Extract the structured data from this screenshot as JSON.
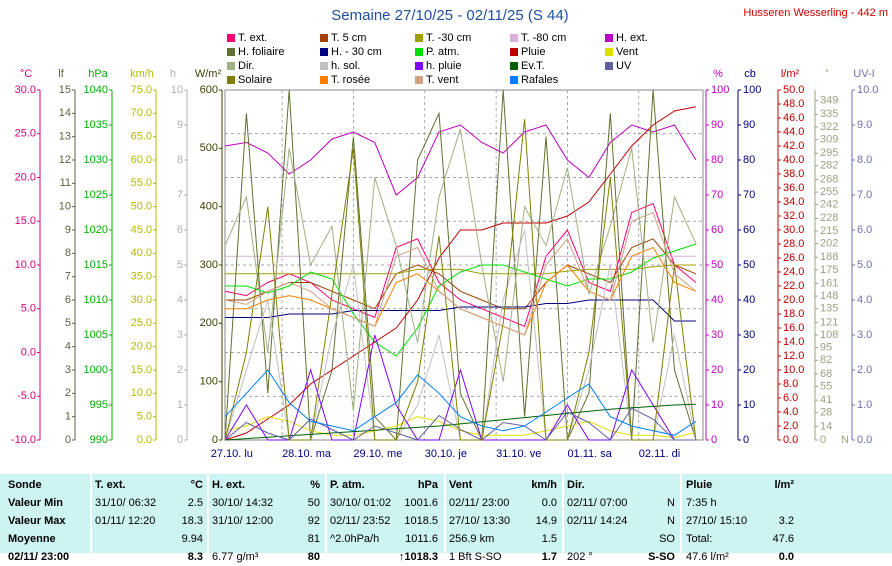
{
  "chart_data": {
    "type": "line",
    "title": "Semaine 27/10/25 - 02/11/25 (S 44)",
    "station": "Husseren Wesserling - 442 m",
    "x": [
      0.2,
      0.5,
      0.8,
      1.1,
      1.4,
      1.7,
      2.0,
      2.3,
      2.6,
      2.9,
      3.2,
      3.5,
      3.8,
      4.1,
      4.4,
      4.7,
      5.0,
      5.3,
      5.6,
      5.9,
      6.2,
      6.5,
      6.8
    ],
    "xlim": [
      0.2,
      6.9
    ],
    "xticks": [
      {
        "value": 0,
        "label": "27.10. lu"
      },
      {
        "value": 1,
        "label": "28.10. ma"
      },
      {
        "value": 2,
        "label": "29.10. me"
      },
      {
        "value": 3,
        "label": "30.10. je"
      },
      {
        "value": 4,
        "label": "31.10. ve"
      },
      {
        "value": 5,
        "label": "01.11. sa"
      },
      {
        "value": 6,
        "label": "02.11. di"
      }
    ],
    "grid_axis": "temp",
    "axes": {
      "temp": {
        "label": "°C",
        "color": "#e0007f",
        "lim": [
          -10,
          30
        ],
        "ticks": [
          {
            "value": -10,
            "label": "-10.0"
          },
          {
            "value": -5,
            "label": "-5.0"
          },
          {
            "value": 0,
            "label": "0.0"
          },
          {
            "value": 5,
            "label": "5.0"
          },
          {
            "value": 10,
            "label": "10.0"
          },
          {
            "value": 15,
            "label": "15.0"
          },
          {
            "value": 20,
            "label": "20.0"
          },
          {
            "value": 25,
            "label": "25.0"
          },
          {
            "value": 30,
            "label": "30.0"
          }
        ]
      },
      "lf": {
        "label": "lf",
        "color": "#606040",
        "lim": [
          0,
          15
        ],
        "ticks": [
          0,
          1,
          2,
          3,
          4,
          5,
          6,
          7,
          8,
          9,
          10,
          11,
          12,
          13,
          14,
          15
        ]
      },
      "hpa": {
        "label": "hPa",
        "color": "#00b000",
        "lim": [
          990,
          1040
        ],
        "ticks": [
          990,
          995,
          1000,
          1005,
          1010,
          1015,
          1020,
          1025,
          1030,
          1035,
          1040
        ]
      },
      "kmh": {
        "label": "km/h",
        "color": "#b8b800",
        "lim": [
          0,
          75
        ],
        "ticks": [
          {
            "value": 0,
            "label": "0.0"
          },
          {
            "value": 5,
            "label": "5.0"
          },
          {
            "value": 10,
            "label": "10.0"
          },
          {
            "value": 15,
            "label": "15.0"
          },
          {
            "value": 20,
            "label": "20.0"
          },
          {
            "value": 25,
            "label": "25.0"
          },
          {
            "value": 30,
            "label": "30.0"
          },
          {
            "value": 35,
            "label": "35.0"
          },
          {
            "value": 40,
            "label": "40.0"
          },
          {
            "value": 45,
            "label": "45.0"
          },
          {
            "value": 50,
            "label": "50.0"
          },
          {
            "value": 55,
            "label": "55.0"
          },
          {
            "value": 60,
            "label": "60.0"
          },
          {
            "value": 65,
            "label": "65.0"
          },
          {
            "value": 70,
            "label": "70.0"
          },
          {
            "value": 75,
            "label": "75.0"
          }
        ]
      },
      "h": {
        "label": "h",
        "color": "#b0b0b0",
        "lim": [
          0,
          10
        ],
        "ticks": [
          0,
          1,
          2,
          3,
          4,
          5,
          6,
          7,
          8,
          9,
          10
        ]
      },
      "wm2": {
        "label": "W/m²",
        "color": "#404000",
        "lim": [
          0,
          600
        ],
        "ticks": [
          0,
          100,
          200,
          300,
          400,
          500,
          600
        ]
      },
      "pct": {
        "label": "%",
        "color": "#c000c0",
        "lim": [
          0,
          100
        ],
        "ticks": [
          0,
          10,
          20,
          30,
          40,
          50,
          60,
          70,
          80,
          90,
          100
        ]
      },
      "cb": {
        "label": "cb",
        "color": "#000080",
        "lim": [
          0,
          100
        ],
        "ticks": [
          0,
          10,
          20,
          30,
          40,
          50,
          60,
          70,
          80,
          90,
          100
        ]
      },
      "rain": {
        "label": "l/m²",
        "color": "#c00000",
        "lim": [
          0,
          50
        ],
        "ticks": [
          {
            "value": 0,
            "label": "0.0"
          },
          {
            "value": 2,
            "label": "2.0"
          },
          {
            "value": 4,
            "label": "4.0"
          },
          {
            "value": 6,
            "label": "6.0"
          },
          {
            "value": 8,
            "label": "8.0"
          },
          {
            "value": 10,
            "label": "10.0"
          },
          {
            "value": 12,
            "label": "12.0"
          },
          {
            "value": 14,
            "label": "14.0"
          },
          {
            "value": 16,
            "label": "16.0"
          },
          {
            "value": 18,
            "label": "18.0"
          },
          {
            "value": 20,
            "label": "20.0"
          },
          {
            "value": 22,
            "label": "22.0"
          },
          {
            "value": 24,
            "label": "24.0"
          },
          {
            "value": 26,
            "label": "26.0"
          },
          {
            "value": 28,
            "label": "28.0"
          },
          {
            "value": 30,
            "label": "30.0"
          },
          {
            "value": 32,
            "label": "32.0"
          },
          {
            "value": 34,
            "label": "34.0"
          },
          {
            "value": 36,
            "label": "36.0"
          },
          {
            "value": 38,
            "label": "38.0"
          },
          {
            "value": 40,
            "label": "40.0"
          },
          {
            "value": 42,
            "label": "42.0"
          },
          {
            "value": 44,
            "label": "44.0"
          },
          {
            "value": 46,
            "label": "46.0"
          },
          {
            "value": 48,
            "label": "48.0"
          },
          {
            "value": 50,
            "label": "50.0"
          }
        ]
      },
      "deg": {
        "label": "°",
        "color": "#a0a080",
        "lim": [
          0,
          360
        ],
        "zero_label": "N",
        "ticks": [
          0,
          14,
          28,
          41,
          55,
          68,
          82,
          95,
          108,
          121,
          135,
          148,
          161,
          175,
          188,
          202,
          215,
          228,
          242,
          255,
          268,
          282,
          295,
          309,
          322,
          335,
          349
        ]
      },
      "uv": {
        "label": "UV-I",
        "color": "#7070b0",
        "lim": [
          0,
          10
        ],
        "ticks": [
          {
            "value": 0,
            "label": "0.0"
          },
          {
            "value": 1,
            "label": "1.0"
          },
          {
            "value": 2,
            "label": "2.0"
          },
          {
            "value": 3,
            "label": "3.0"
          },
          {
            "value": 4,
            "label": "4.0"
          },
          {
            "value": 5,
            "label": "5.0"
          },
          {
            "value": 6,
            "label": "6.0"
          },
          {
            "value": 7,
            "label": "7.0"
          },
          {
            "value": 8,
            "label": "8.0"
          },
          {
            "value": 9,
            "label": "9.0"
          },
          {
            "value": 10,
            "label": "10.0"
          }
        ]
      }
    },
    "series": [
      {
        "name": "T. ext.",
        "color": "#ff0070",
        "axis": "temp",
        "values": [
          7,
          6.5,
          8,
          9,
          8,
          6,
          5,
          4,
          12,
          13,
          8,
          6,
          5,
          4,
          3,
          11,
          14,
          8,
          7,
          16,
          17,
          10,
          8
        ]
      },
      {
        "name": "T. 5 cm",
        "color": "#a04000",
        "axis": "temp",
        "values": [
          6,
          6,
          7,
          8,
          8,
          7,
          6,
          5,
          9,
          10,
          9,
          7,
          6,
          5,
          5,
          8,
          10,
          9,
          8,
          12,
          13,
          10,
          9
        ]
      },
      {
        "name": "T. -30 cm",
        "color": "#a0a000",
        "axis": "temp",
        "values": [
          9,
          9,
          9,
          9,
          9,
          9,
          9,
          9,
          9,
          9.5,
          9.5,
          9.5,
          9,
          9,
          9,
          9,
          9.3,
          9.5,
          9.5,
          9.5,
          9.8,
          10,
          10
        ]
      },
      {
        "name": "T. -80 cm",
        "color": "#d8b0d8",
        "axis": "temp",
        "values": [
          11,
          11,
          11,
          11,
          11,
          11,
          11,
          11,
          11,
          11,
          11,
          11,
          11,
          11,
          11,
          11,
          11,
          11,
          11,
          11,
          11,
          11,
          11
        ]
      },
      {
        "name": "H. ext.",
        "color": "#c000c0",
        "axis": "pct",
        "values": [
          84,
          85,
          82,
          76,
          80,
          86,
          88,
          85,
          70,
          75,
          88,
          90,
          85,
          82,
          88,
          90,
          80,
          75,
          85,
          90,
          88,
          90,
          80
        ]
      },
      {
        "name": "H. foliaire",
        "color": "#607030",
        "axis": "lf",
        "values": [
          0,
          14,
          2,
          15,
          0,
          3,
          13,
          1,
          0,
          12,
          14,
          2,
          0,
          15,
          1,
          13,
          0,
          2,
          14,
          0,
          15,
          3,
          0
        ]
      },
      {
        "name": "H. - 30 cm",
        "color": "#000080",
        "axis": "cb",
        "values": [
          35,
          35,
          35,
          36,
          36,
          36,
          37,
          37,
          37,
          37,
          37,
          38,
          38,
          38,
          38,
          39,
          39,
          40,
          40,
          40,
          40,
          34,
          34
        ]
      },
      {
        "name": "P. atm.",
        "color": "#00e000",
        "axis": "hpa",
        "values": [
          1012,
          1012,
          1011,
          1012,
          1014,
          1013,
          1008,
          1004,
          1002,
          1006,
          1012,
          1014,
          1015,
          1015,
          1014,
          1013,
          1012,
          1013,
          1013,
          1014,
          1016,
          1017,
          1018
        ]
      },
      {
        "name": "Pluie",
        "color": "#c00000",
        "axis": "rain",
        "values": [
          0,
          1,
          3,
          5,
          8,
          10,
          12,
          14,
          16,
          20,
          26,
          30,
          30,
          31,
          31,
          31,
          32,
          34,
          38,
          42,
          45,
          47,
          47.6
        ]
      },
      {
        "name": "Vent",
        "color": "#e0e000",
        "axis": "kmh",
        "values": [
          2,
          3,
          5,
          4,
          2,
          1,
          1,
          2,
          3,
          5,
          4,
          2,
          1,
          1,
          1,
          2,
          3,
          4,
          2,
          1,
          1,
          0.5,
          1.7
        ]
      },
      {
        "name": "Dir.",
        "color": "#a0b080",
        "axis": "deg",
        "values": [
          200,
          250,
          90,
          300,
          180,
          220,
          30,
          270,
          200,
          100,
          250,
          320,
          180,
          60,
          240,
          200,
          280,
          150,
          220,
          300,
          100,
          250,
          202
        ]
      },
      {
        "name": "h. sol.",
        "color": "#c0c0c0",
        "axis": "h",
        "values": [
          0,
          2,
          4,
          0,
          0,
          3,
          5,
          0,
          0,
          1,
          3,
          0,
          0,
          4,
          6,
          0,
          0,
          2,
          5,
          0,
          0,
          3,
          0
        ]
      },
      {
        "name": "h. pluie",
        "color": "#8000ff",
        "axis": "h",
        "values": [
          0,
          1,
          0,
          0,
          2,
          0,
          0,
          3,
          1,
          0,
          0,
          2,
          0,
          0,
          0,
          0,
          1,
          0,
          0,
          2,
          1,
          0,
          0
        ]
      },
      {
        "name": "Ev.T.",
        "color": "#006000",
        "axis": "rain",
        "values": [
          0,
          0.2,
          0.4,
          0.6,
          0.8,
          1,
          1.2,
          1.4,
          1.6,
          1.8,
          2,
          2.3,
          2.6,
          2.9,
          3.2,
          3.5,
          3.8,
          4.1,
          4.4,
          4.6,
          4.8,
          5,
          5.1
        ]
      },
      {
        "name": "UV",
        "color": "#6060a0",
        "axis": "uv",
        "values": [
          0,
          0.5,
          0.2,
          0,
          0.6,
          0.3,
          0,
          0.4,
          0.2,
          0,
          0.7,
          0.3,
          0,
          0.5,
          0.4,
          0,
          0.8,
          0.5,
          0,
          0.9,
          0.6,
          0,
          0
        ]
      },
      {
        "name": "Solaire",
        "color": "#808000",
        "axis": "wm2",
        "values": [
          0,
          150,
          400,
          0,
          0,
          250,
          500,
          0,
          0,
          100,
          350,
          0,
          0,
          200,
          550,
          0,
          0,
          150,
          450,
          0,
          0,
          300,
          0
        ]
      },
      {
        "name": "T. rosée",
        "color": "#ff8000",
        "axis": "temp",
        "values": [
          5,
          5,
          6,
          6.5,
          6,
          5,
          4,
          3,
          8,
          9,
          7,
          5,
          4,
          3,
          2,
          8,
          10,
          7,
          6,
          11,
          12,
          8,
          7
        ]
      },
      {
        "name": "T. vent",
        "color": "#d0a080",
        "axis": "temp",
        "values": [
          6,
          5.5,
          7,
          8,
          7,
          5,
          4,
          3,
          11,
          12,
          7,
          5,
          4,
          3,
          2,
          10,
          13,
          7,
          6,
          15,
          16,
          9,
          7
        ]
      },
      {
        "name": "Rafales",
        "color": "#0080ff",
        "axis": "kmh",
        "values": [
          5,
          10,
          15,
          8,
          4,
          3,
          2,
          5,
          8,
          14,
          10,
          5,
          3,
          2,
          3,
          6,
          9,
          12,
          5,
          3,
          2,
          1,
          4
        ]
      }
    ]
  },
  "table": {
    "header": [
      {
        "name": "Sonde"
      },
      {
        "name": "T. ext.",
        "unit": "°C"
      },
      {
        "name": "H. ext.",
        "unit": "%"
      },
      {
        "name": "P. atm.",
        "unit": "hPa"
      },
      {
        "name": "Vent",
        "unit": "km/h"
      },
      {
        "name": "Dir."
      },
      {
        "name": "Pluie",
        "unit": "l/m²"
      }
    ],
    "rows": [
      {
        "label": "Valeur Min",
        "cells": [
          "31/10/ 06:32",
          "2.5",
          "30/10/ 14:32",
          "50",
          "30/10/ 01:02",
          "1001.6",
          "02/11/ 23:00",
          "0.0",
          "02/11/ 07:00",
          "N",
          "7:35 h",
          null
        ]
      },
      {
        "label": "Valeur Max",
        "cells": [
          "01/11/ 12:20",
          "18.3",
          "31/10/ 12:00",
          "92",
          "02/11/ 23:52",
          "1018.5",
          "27/10/ 13:30",
          "14.9",
          "02/11/ 14:24",
          "N",
          "27/10/ 15:10",
          "3.2"
        ]
      },
      {
        "label": "Moyenne",
        "cells": [
          null,
          "9.94",
          null,
          "81",
          "^2.0hPa/h",
          "1011.6",
          "256.9 km",
          "1.5",
          null,
          "SO",
          "Total:",
          "47.6"
        ]
      },
      {
        "label": "02/11/ 23:00",
        "cells": [
          null,
          "8.3",
          "6.77 g/m³",
          "80",
          null,
          "↑1018.3",
          "1 Bft S-SO",
          "1.7",
          "202 °",
          "S-SO",
          "47.6 l/m²",
          "0.0"
        ]
      }
    ]
  }
}
